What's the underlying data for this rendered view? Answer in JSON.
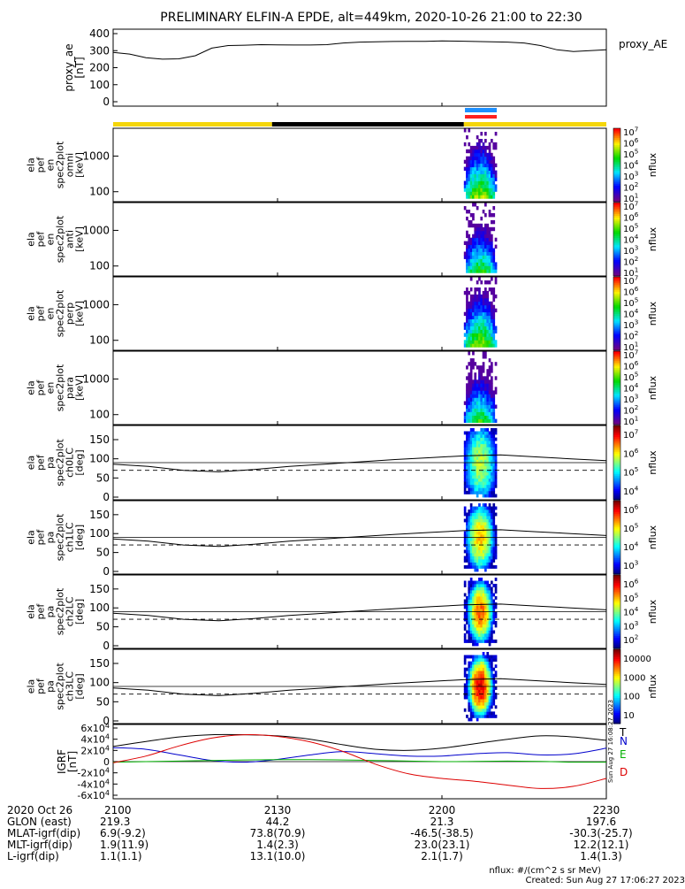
{
  "title": "PRELIMINARY ELFIN-A EPDE, alt=449km, 2020-10-26 21:00 to 22:30",
  "colors": {
    "ae_line": "#000000",
    "status_yellow": "#f5d60a",
    "status_black": "#000000",
    "flag_blue": "#1e90ff",
    "flag_red": "#ff2020",
    "bx": "#000000",
    "by": "#0000cc",
    "bz": "#00b000",
    "bt": "#dd0000"
  },
  "time_axis": {
    "date_label": "2020 Oct 26",
    "tick_labels": [
      "2100",
      "2130",
      "2200",
      "2230"
    ],
    "rows": [
      {
        "label": "GLON (east)",
        "values": [
          "219.3",
          "44.2",
          "21.3",
          "197.6"
        ]
      },
      {
        "label": "MLAT-igrf(dip)",
        "values": [
          "6.9(-9.2)",
          "73.8(70.9)",
          "-46.5(-38.5)",
          "-30.3(-25.7)"
        ]
      },
      {
        "label": "MLT-igrf(dip)",
        "values": [
          "1.9(11.9)",
          "1.4(2.3)",
          "23.0(23.1)",
          "12.2(12.1)"
        ]
      },
      {
        "label": "L-igrf(dip)",
        "values": [
          "1.1(1.1)",
          "13.1(10.0)",
          "2.1(1.7)",
          "1.4(1.3)"
        ]
      }
    ]
  },
  "footer": {
    "units_note": "nflux: #/(cm^2 s sr MeV)",
    "created": "Created: Sun Aug 27 17:06:27 2023"
  },
  "side_stamp": "Sun Aug 27 16:08:27 2023",
  "chart_data": [
    {
      "type": "line",
      "ylabel": "proxy_ae\n[nT]",
      "legend": "proxy_AE",
      "ylim": [
        0,
        400
      ],
      "yticks": [
        "0",
        "100",
        "200",
        "300",
        "400"
      ],
      "x_minutes": [
        0,
        3,
        6,
        9,
        12,
        15,
        18,
        21,
        24,
        27,
        30,
        33,
        36,
        39,
        42,
        45,
        48,
        51,
        54,
        57,
        60,
        63,
        66,
        69,
        72,
        75,
        78,
        81,
        84,
        87,
        90
      ],
      "values": [
        290,
        280,
        258,
        250,
        252,
        270,
        315,
        330,
        332,
        335,
        334,
        333,
        333,
        335,
        345,
        350,
        352,
        354,
        355,
        355,
        357,
        356,
        354,
        352,
        350,
        345,
        330,
        305,
        295,
        300,
        305
      ]
    },
    {
      "type": "heatmap",
      "ylabel": "ela\npef\nen\nspec2plot\nomni\n[keV]",
      "yticks": [
        "100",
        "1000"
      ],
      "zlabel": "nflux",
      "ztick_labels": [
        "10^1",
        "10^2",
        "10^3",
        "10^4",
        "10^5",
        "10^6",
        "10^7"
      ],
      "time_range_minutes": [
        64,
        70
      ]
    },
    {
      "type": "heatmap",
      "ylabel": "ela\npef\nen\nspec2plot\nanti\n[keV]",
      "yticks": [
        "100",
        "1000"
      ],
      "zlabel": "nflux",
      "ztick_labels": [
        "10^1",
        "10^2",
        "10^3",
        "10^4",
        "10^5",
        "10^6",
        "10^7"
      ],
      "time_range_minutes": [
        64,
        70
      ]
    },
    {
      "type": "heatmap",
      "ylabel": "ela\npef\nen\nspec2plot\nperp\n[keV]",
      "yticks": [
        "100",
        "1000"
      ],
      "zlabel": "nflux",
      "ztick_labels": [
        "10^1",
        "10^2",
        "10^3",
        "10^4",
        "10^5",
        "10^6",
        "10^7"
      ],
      "time_range_minutes": [
        64,
        70
      ]
    },
    {
      "type": "heatmap",
      "ylabel": "ela\npef\nen\nspec2plot\npara\n[keV]",
      "yticks": [
        "100",
        "1000"
      ],
      "zlabel": "nflux",
      "ztick_labels": [
        "10^1",
        "10^2",
        "10^3",
        "10^4",
        "10^5",
        "10^6",
        "10^7"
      ],
      "time_range_minutes": [
        64,
        70
      ]
    },
    {
      "type": "heatmap",
      "ylabel": "ela\npef\npa\nspec2plot\nch0LC\n[deg]",
      "yticks": [
        "0",
        "50",
        "100",
        "150"
      ],
      "ylim": [
        0,
        180
      ],
      "zlabel": "nflux",
      "ztick_labels": [
        "10^4",
        "10^5",
        "10^6",
        "10^7"
      ],
      "time_range_minutes": [
        64,
        70
      ]
    },
    {
      "type": "heatmap",
      "ylabel": "ela\npef\npa\nspec2plot\nch1LC\n[deg]",
      "yticks": [
        "0",
        "50",
        "100",
        "150"
      ],
      "ylim": [
        0,
        180
      ],
      "zlabel": "nflux",
      "ztick_labels": [
        "10^3",
        "10^4",
        "10^5",
        "10^6"
      ],
      "time_range_minutes": [
        64,
        70
      ]
    },
    {
      "type": "heatmap",
      "ylabel": "ela\npef\npa\nspec2plot\nch2LC\n[deg]",
      "yticks": [
        "0",
        "50",
        "100",
        "150"
      ],
      "ylim": [
        0,
        180
      ],
      "zlabel": "nflux",
      "ztick_labels": [
        "10^2",
        "10^3",
        "10^4",
        "10^5",
        "10^6"
      ],
      "time_range_minutes": [
        64,
        70
      ]
    },
    {
      "type": "heatmap",
      "ylabel": "ela\npef\npa\nspec2plot\nch3LC\n[deg]",
      "yticks": [
        "0",
        "50",
        "100",
        "150"
      ],
      "ylim": [
        0,
        180
      ],
      "zlabel": "nflux",
      "ztick_labels": [
        "10",
        "100",
        "1000",
        "10000"
      ],
      "time_range_minutes": [
        64,
        70
      ]
    },
    {
      "type": "line",
      "ylabel": "IGRF\n[nT]",
      "ylim": [
        -60000,
        60000
      ],
      "yticks": [
        "-6x10^4",
        "-4x10^4",
        "-2x10^4",
        "0",
        "2x10^4",
        "4x10^4",
        "6x10^4"
      ],
      "x_minutes": [
        0,
        6,
        12,
        18,
        24,
        30,
        36,
        42,
        48,
        54,
        60,
        66,
        72,
        78,
        84,
        90
      ],
      "series": [
        {
          "name": "T",
          "values": [
            27000,
            36000,
            44000,
            48000,
            48000,
            46000,
            40000,
            30000,
            22000,
            20000,
            24000,
            32000,
            40000,
            46000,
            44000,
            38000
          ]
        },
        {
          "name": "N",
          "values": [
            25000,
            22000,
            12000,
            2000,
            -1000,
            4000,
            12000,
            18000,
            14000,
            10000,
            10000,
            14000,
            16000,
            12000,
            14000,
            24000
          ]
        },
        {
          "name": "E",
          "values": [
            -1000,
            0,
            1000,
            2000,
            3000,
            3500,
            3500,
            3000,
            2000,
            1000,
            0,
            500,
            1000,
            500,
            -1000,
            -1000
          ]
        },
        {
          "name": "D",
          "values": [
            -2000,
            10000,
            28000,
            42000,
            48000,
            45000,
            35000,
            18000,
            -5000,
            -22000,
            -30000,
            -35000,
            -42000,
            -48000,
            -44000,
            -30000
          ]
        }
      ]
    }
  ]
}
